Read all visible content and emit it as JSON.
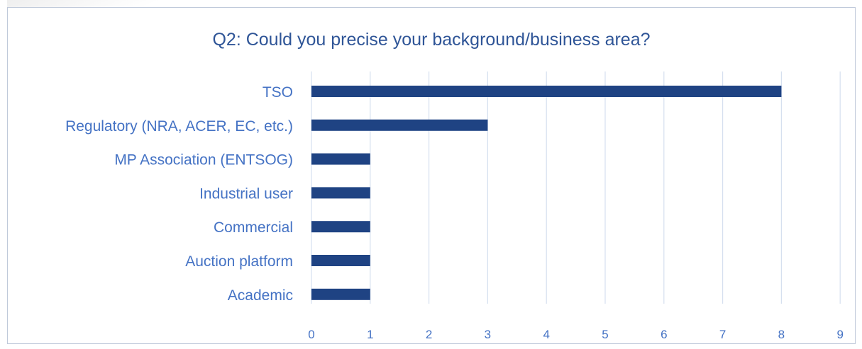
{
  "chart_data": {
    "type": "bar",
    "orientation": "horizontal",
    "title": "Q2: Could you precise your background/business area?",
    "categories": [
      "TSO",
      "Regulatory (NRA, ACER, EC, etc.)",
      "MP Association (ENTSOG)",
      "Industrial user",
      "Commercial",
      "Auction platform",
      "Academic"
    ],
    "values": [
      8,
      3,
      1,
      1,
      1,
      1,
      1
    ],
    "xlabel": "",
    "ylabel": "",
    "xlim": [
      0,
      9
    ],
    "xticks": [
      "0",
      "1",
      "2",
      "3",
      "4",
      "5",
      "6",
      "7",
      "8",
      "9"
    ],
    "grid": "vertical",
    "legend": "none",
    "colors": {
      "bar": "#1f4383",
      "text": "#4472c4",
      "title": "#2f5597",
      "grid": "#d6e0ef"
    }
  }
}
